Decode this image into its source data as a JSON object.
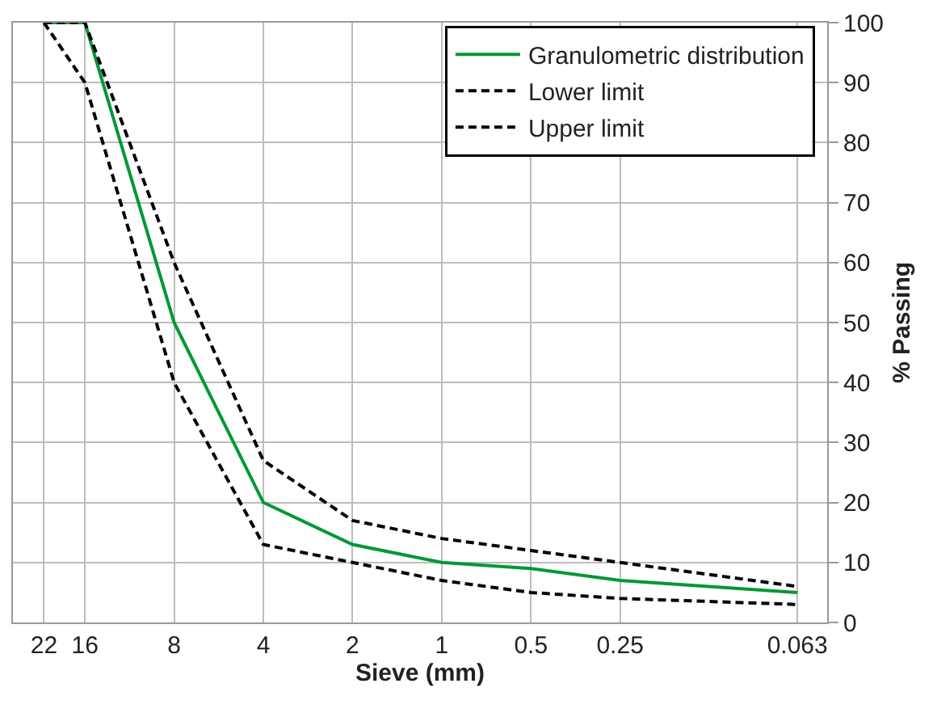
{
  "chart_data": {
    "type": "line",
    "xlabel": "Sieve (mm)",
    "ylabel": "% Passing",
    "log": "x",
    "x": [
      22,
      16,
      8,
      4,
      2,
      1,
      0.5,
      0.25,
      0.063
    ],
    "series": [
      {
        "name": "Granulometric distribution",
        "color": "#009933",
        "line_style": "solid",
        "values": [
          100,
          100,
          50,
          20,
          13,
          10,
          9,
          7,
          5
        ]
      },
      {
        "name": "Lower limit",
        "color": "#000000",
        "line_style": "dashed",
        "values": [
          100,
          90,
          40,
          13,
          10,
          7,
          5,
          4,
          3
        ]
      },
      {
        "name": "Upper limit",
        "color": "#000000",
        "line_style": "dashed",
        "values": [
          100,
          100,
          60,
          27,
          17,
          14,
          12,
          10,
          6
        ]
      }
    ],
    "xlim": [
      28,
      0.05
    ],
    "xticks": [
      22,
      16,
      8,
      4,
      2,
      1,
      0.5,
      0.25,
      0.063
    ],
    "ylim": [
      0,
      100
    ],
    "yticks": [
      0,
      10,
      20,
      30,
      40,
      50,
      60,
      70,
      80,
      90,
      100
    ],
    "grid": true,
    "legend": "top right",
    "marker": "none"
  }
}
